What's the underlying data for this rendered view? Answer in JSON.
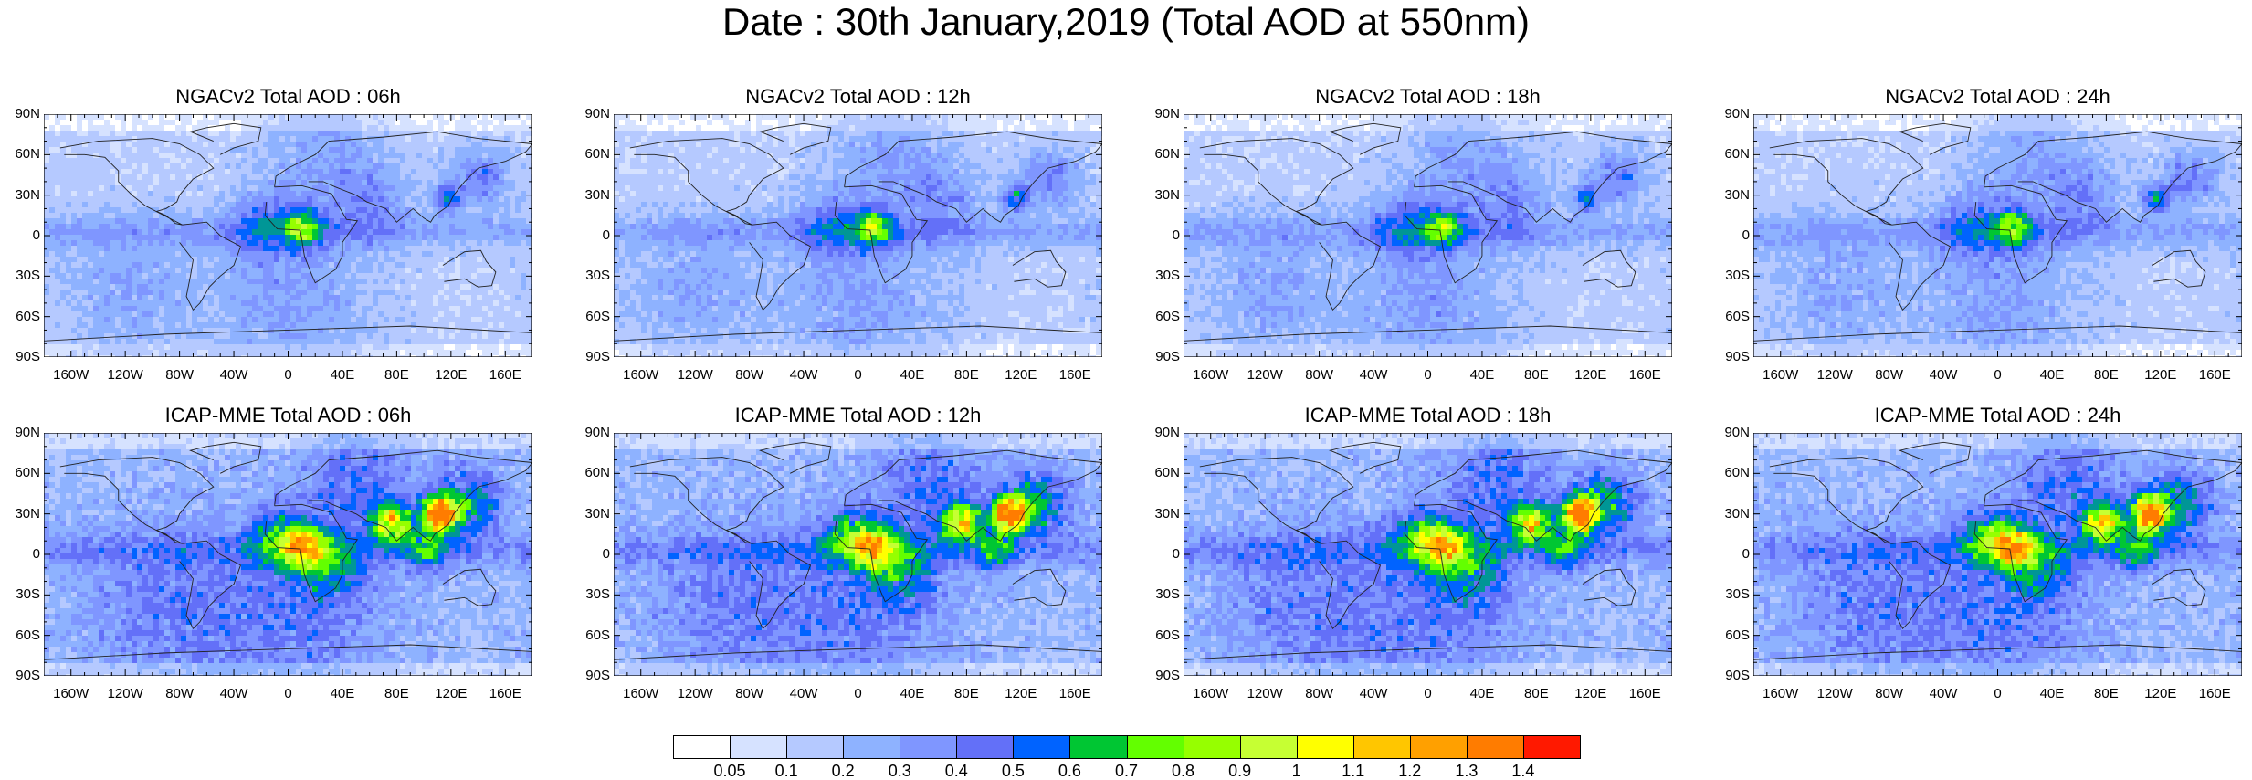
{
  "title": "Date : 30th January,2019 (Total AOD at 550nm)",
  "panels": [
    {
      "title": "NGACv2 Total AOD : 06h",
      "row": 0,
      "col": 0
    },
    {
      "title": "NGACv2 Total AOD : 12h",
      "row": 0,
      "col": 1
    },
    {
      "title": "NGACv2 Total AOD : 18h",
      "row": 0,
      "col": 2
    },
    {
      "title": "NGACv2 Total AOD : 24h",
      "row": 0,
      "col": 3
    },
    {
      "title": "ICAP-MME Total AOD : 06h",
      "row": 1,
      "col": 0
    },
    {
      "title": "ICAP-MME Total AOD : 12h",
      "row": 1,
      "col": 1
    },
    {
      "title": "ICAP-MME Total AOD : 18h",
      "row": 1,
      "col": 2
    },
    {
      "title": "ICAP-MME Total AOD : 24h",
      "row": 1,
      "col": 3
    }
  ],
  "lat_ticks": [
    "90N",
    "60N",
    "30N",
    "0",
    "30S",
    "60S",
    "90S"
  ],
  "lon_ticks": [
    "160W",
    "120W",
    "80W",
    "40W",
    "0",
    "40E",
    "80E",
    "120E",
    "160E"
  ],
  "colorbar": {
    "labels": [
      "0.05",
      "0.1",
      "0.2",
      "0.3",
      "0.4",
      "0.5",
      "0.6",
      "0.7",
      "0.8",
      "0.9",
      "1",
      "1.1",
      "1.2",
      "1.3",
      "1.4"
    ],
    "colors": [
      "#ffffff",
      "#d6e2ff",
      "#b5c9ff",
      "#8eb2ff",
      "#7f96ff",
      "#6370f8",
      "#0063ff",
      "#009696",
      "#00c633",
      "#63ff00",
      "#96ff00",
      "#c6ff33",
      "#ffff00",
      "#ffc600",
      "#ffa000",
      "#ff7c00",
      "#ff1900"
    ]
  }
}
